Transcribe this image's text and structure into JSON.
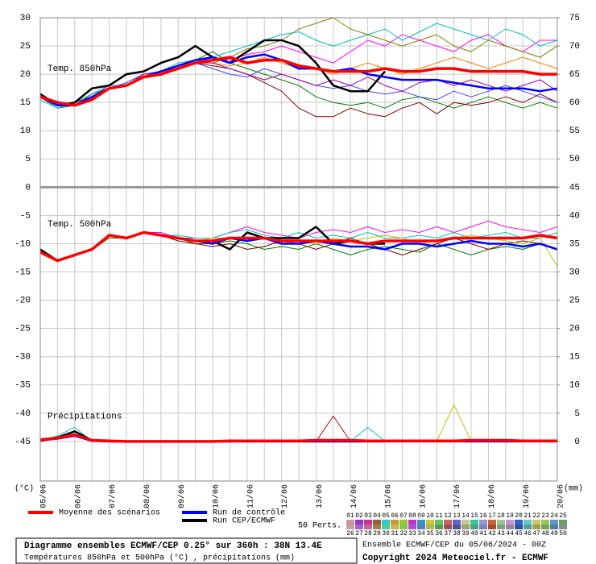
{
  "chart_data": {
    "type": "line",
    "title": "Diagramme ensembles ECMWF/CEP 0.25° sur 360h : 38N 13.4E",
    "subtitle": "Températures 850hPa et 500hPa (°C) , précipitations (mm)",
    "run_info": "Ensemble ECMWF/CEP du 05/06/2024 - 00Z",
    "copyright": "Copyright 2024 Meteociel.fr - ECMWF",
    "y_unit": "(°C)",
    "y2_unit": "(mm)",
    "panel_labels": [
      "Temp. 850hPa",
      "Temp. 500hPa",
      "Précipitations"
    ],
    "grid": true,
    "categories": [
      "05/06",
      null,
      "06/06",
      null,
      "07/06",
      null,
      "08/06",
      null,
      "09/06",
      null,
      "10/06",
      null,
      "11/06",
      null,
      "12/06",
      null,
      "13/06",
      null,
      "14/06",
      null,
      "15/06",
      null,
      "16/06",
      null,
      "17/06",
      null,
      "18/06",
      null,
      "19/06",
      null,
      "20/06"
    ],
    "ylim": [
      -52,
      30
    ],
    "yticks": [
      30,
      25,
      20,
      15,
      10,
      5,
      0,
      -5,
      -10,
      -15,
      -20,
      -25,
      -30,
      -35,
      -40,
      -45
    ],
    "y2lim": [
      -7,
      75
    ],
    "y2ticks": [
      75,
      70,
      65,
      60,
      55,
      50,
      45,
      40,
      35,
      30,
      25,
      20,
      15,
      10,
      5,
      0
    ],
    "series": [
      {
        "color": "#ff00ff",
        "values": [
          16,
          14.5,
          14.5,
          16,
          18,
          18,
          20,
          20.5,
          21.5,
          22,
          23,
          22.5,
          23.5,
          24,
          25,
          24,
          23,
          22,
          24,
          26,
          25,
          27,
          26,
          25,
          24,
          26,
          27,
          25,
          24,
          26,
          26
        ]
      },
      {
        "color": "#008000",
        "values": [
          16,
          14,
          14.5,
          16.5,
          17.5,
          18.5,
          20,
          20.5,
          21,
          22.5,
          24,
          22,
          21,
          20,
          19,
          18,
          16,
          15,
          14.5,
          15,
          14,
          15.5,
          16,
          15,
          14,
          15,
          16,
          15,
          14,
          15,
          14
        ]
      },
      {
        "color": "#800000",
        "values": [
          16,
          14.5,
          14.5,
          16,
          17.5,
          18,
          19.5,
          20,
          21,
          22,
          21.5,
          21,
          20,
          18.5,
          17,
          14,
          12.5,
          12.5,
          14,
          13,
          12.5,
          14,
          15,
          13,
          15,
          14.5,
          15,
          16,
          15,
          16.5,
          15
        ]
      },
      {
        "color": "#00c0c0",
        "values": [
          15.5,
          14,
          15,
          16.5,
          18,
          18,
          19.5,
          20.5,
          22,
          22.5,
          23,
          24,
          25,
          26,
          27,
          27.5,
          26,
          25,
          26,
          27,
          28,
          26,
          27.5,
          29,
          28,
          27,
          26,
          28,
          27,
          25,
          26
        ]
      },
      {
        "color": "#808000",
        "values": [
          16,
          14.5,
          14.5,
          16,
          17.5,
          18,
          19.5,
          20,
          21.5,
          22,
          22,
          23,
          24.5,
          25,
          26,
          28,
          29,
          30,
          28,
          27,
          26,
          25,
          26,
          27,
          25,
          24,
          26,
          25,
          24,
          23,
          25
        ]
      },
      {
        "color": "#4040ff",
        "values": [
          16,
          14.5,
          15,
          16,
          17.5,
          18.5,
          20,
          20.5,
          21,
          22,
          21,
          20,
          19.5,
          21,
          20,
          19,
          18,
          17.5,
          18,
          17,
          16.5,
          17,
          16,
          15.5,
          17,
          16,
          17,
          18,
          17,
          16,
          15
        ]
      },
      {
        "color": "#ff8000",
        "values": [
          16,
          14.5,
          14.5,
          16,
          17.5,
          18,
          20,
          20,
          21,
          22.5,
          22,
          21.5,
          22,
          23,
          22,
          21,
          21,
          20,
          21,
          22,
          21,
          20,
          21,
          22,
          23,
          22,
          21,
          22,
          23,
          22,
          21
        ]
      },
      {
        "color": "#a000a0",
        "values": [
          16,
          14.5,
          15,
          16,
          17.5,
          18,
          20,
          20.5,
          21,
          22,
          22,
          21,
          20,
          19,
          20,
          19,
          18,
          19,
          18,
          19.5,
          18,
          17,
          18.5,
          19,
          18,
          19,
          18,
          17,
          18,
          19,
          17
        ]
      },
      {
        "color": "#ff00ff",
        "values": [
          -11,
          -13,
          -12,
          -11,
          -8.5,
          -9,
          -8,
          -8,
          -9,
          -9,
          -9,
          -8,
          -7,
          -8,
          -8.5,
          -9,
          -8,
          -7.5,
          -8,
          -7,
          -8,
          -7.5,
          -8,
          -7,
          -8,
          -7,
          -6,
          -7,
          -7.5,
          -8,
          -7
        ]
      },
      {
        "color": "#008000",
        "values": [
          -11.5,
          -13,
          -12,
          -11,
          -9,
          -9,
          -8,
          -8.5,
          -9,
          -10,
          -10,
          -9.5,
          -10,
          -11,
          -10.5,
          -11,
          -10,
          -11,
          -12,
          -11,
          -10.5,
          -11,
          -11.5,
          -10,
          -11,
          -12,
          -11,
          -10.5,
          -11,
          -10,
          -11
        ]
      },
      {
        "color": "#00c0c0",
        "values": [
          -11,
          -13,
          -12,
          -11,
          -8.5,
          -9,
          -8,
          -8.5,
          -8.5,
          -9,
          -9,
          -8,
          -7.5,
          -8.5,
          -9,
          -8,
          -9,
          -8.5,
          -9,
          -8,
          -9,
          -9,
          -8.5,
          -9,
          -8,
          -9,
          -8.5,
          -8,
          -9,
          -9,
          -8
        ]
      },
      {
        "color": "#800000",
        "values": [
          -11.5,
          -13,
          -12,
          -11,
          -8.5,
          -9,
          -8,
          -8.5,
          -9.5,
          -10,
          -10.5,
          -10,
          -11,
          -10.5,
          -9.5,
          -10,
          -11,
          -10,
          -9,
          -10,
          -11,
          -12,
          -11,
          -10,
          -9,
          -10,
          -11,
          -10,
          -9.5,
          -10,
          -11
        ]
      },
      {
        "color": "#c0c000",
        "values": [
          -11,
          -13,
          -12,
          -11,
          -8.5,
          -9,
          -8,
          -8.5,
          -9,
          -9.5,
          -9,
          -9,
          -9.5,
          -9,
          -10,
          -9.5,
          -10,
          -9,
          -9.5,
          -9,
          -8.5,
          -9,
          -10,
          -9.5,
          -9,
          -8.5,
          -9,
          -9.5,
          -10,
          -9,
          -14
        ]
      },
      {
        "color": "#00c0c0",
        "axis": "y2",
        "values": [
          0,
          1,
          2.5,
          0,
          0,
          0,
          0,
          0,
          0,
          0,
          0,
          0,
          0,
          0,
          0,
          0,
          0,
          0,
          0,
          2.5,
          0,
          0,
          0,
          0,
          0,
          0,
          0,
          0,
          0,
          0,
          0
        ]
      },
      {
        "color": "#c0c000",
        "axis": "y2",
        "values": [
          0,
          0.5,
          1,
          0,
          0,
          0,
          0,
          0,
          0,
          0,
          0,
          0,
          0,
          0,
          0,
          0,
          0,
          0,
          0,
          0,
          0,
          0,
          0,
          0,
          6.5,
          0,
          0,
          0,
          0,
          0,
          0
        ]
      },
      {
        "color": "#c00000",
        "axis": "y2",
        "values": [
          0,
          0.5,
          1,
          0,
          0,
          0,
          0,
          0,
          0,
          0,
          0,
          0,
          0,
          0,
          0,
          0,
          0,
          4.5,
          0,
          0,
          0,
          0,
          0,
          0,
          0,
          0,
          0,
          0,
          0,
          0,
          0
        ]
      },
      {
        "name": "Moyenne des scénarios",
        "color": "#ff0000",
        "values": [
          16,
          15,
          14.5,
          15.5,
          17.5,
          18,
          19.5,
          20,
          21,
          22,
          22.5,
          23,
          22,
          22.5,
          22.5,
          21.5,
          21,
          20.5,
          20.5,
          20.5,
          21,
          20.5,
          20.5,
          21,
          21,
          20.5,
          20.5,
          20.5,
          20.5,
          20,
          20
        ]
      },
      {
        "name": "Run de contrôle",
        "color": "#0000ff",
        "values": [
          16,
          14.5,
          14.5,
          16,
          17.5,
          18,
          19.5,
          20.5,
          21.5,
          22.5,
          23,
          22,
          23,
          23.5,
          22.5,
          21,
          21,
          20.5,
          21,
          20,
          19.5,
          19,
          19,
          19,
          18.5,
          18,
          17.5,
          17.5,
          17.5,
          17,
          17.5
        ]
      },
      {
        "name": "Run CEP/ECMWF",
        "color": "#000000",
        "values": [
          16.5,
          14.5,
          15,
          17.5,
          18,
          20,
          20.5,
          22,
          23,
          25,
          23,
          22,
          24,
          26,
          26,
          25,
          22,
          18,
          17,
          17,
          20.5,
          null,
          null,
          null,
          null,
          null,
          null,
          null,
          null,
          null,
          null
        ]
      },
      {
        "name": "Moyenne des scénarios",
        "color": "#ff0000",
        "values": [
          -11.5,
          -13,
          -12,
          -11,
          -8.5,
          -9,
          -8,
          -8.5,
          -9,
          -9.5,
          -9.5,
          -9,
          -9,
          -9,
          -9.5,
          -9.5,
          -9.5,
          -9.5,
          -9.5,
          -10,
          -9.5,
          -9.5,
          -9.5,
          -9.5,
          -9,
          -9,
          -9,
          -9,
          -9,
          -8.5,
          -9
        ]
      },
      {
        "name": "Run de contrôle",
        "color": "#0000ff",
        "values": [
          -11.5,
          -13,
          -12,
          -11,
          -8.5,
          -9,
          -8,
          -8.5,
          -9,
          -9.5,
          -10,
          -9,
          -9.5,
          -9,
          -10,
          -10,
          -9.5,
          -10,
          -10.5,
          -10.5,
          -11,
          -10,
          -10,
          -10.5,
          -10,
          -9.5,
          -10,
          -10,
          -10.5,
          -10,
          -11
        ]
      },
      {
        "name": "Run CEP/ECMWF",
        "color": "#000000",
        "values": [
          -11,
          -13,
          -12,
          -11,
          -8.5,
          -9,
          -8,
          -8.5,
          -9,
          -9.5,
          -9.5,
          -11,
          -8,
          -9,
          -9,
          -9,
          -7,
          -10,
          -9.5,
          -10,
          -10,
          null,
          null,
          null,
          null,
          null,
          null,
          null,
          null,
          null,
          null
        ]
      },
      {
        "name": "Moyenne des scénarios",
        "color": "#ff0000",
        "axis": "y2",
        "values": [
          0.3,
          0.6,
          1.2,
          0.2,
          0.1,
          0,
          0,
          0,
          0,
          0,
          0,
          0.1,
          0.1,
          0.1,
          0.1,
          0.1,
          0.2,
          0.2,
          0.2,
          0.1,
          0.1,
          0.1,
          0.1,
          0.1,
          0.1,
          0.2,
          0.2,
          0.2,
          0.1,
          0.1,
          0.1
        ]
      },
      {
        "name": "Run de contrôle",
        "color": "#0000ff",
        "axis": "y2",
        "values": [
          0.2,
          0.5,
          1,
          0.1,
          0,
          0,
          0,
          0,
          0,
          0,
          0,
          0,
          0,
          0,
          0,
          0,
          0,
          0,
          0,
          0,
          0,
          0,
          0,
          0,
          0,
          0,
          0,
          0,
          0,
          0,
          0
        ]
      },
      {
        "name": "Run CEP/ECMWF",
        "color": "#000000",
        "axis": "y2",
        "values": [
          0.3,
          0.7,
          1.8,
          0.2,
          0,
          0,
          0,
          0,
          0,
          0,
          0,
          0,
          0,
          0,
          0,
          0,
          0,
          0,
          0,
          0,
          0,
          null,
          null,
          null,
          null,
          null,
          null,
          null,
          null,
          null,
          null
        ]
      }
    ],
    "members": {
      "count_label": "50 Perts.",
      "labels": [
        "01",
        "02",
        "03",
        "04",
        "05",
        "06",
        "07",
        "08",
        "09",
        "10",
        "11",
        "12",
        "13",
        "14",
        "15",
        "16",
        "17",
        "18",
        "19",
        "20",
        "21",
        "22",
        "23",
        "24",
        "25",
        "26",
        "27",
        "28",
        "29",
        "30",
        "31",
        "32",
        "33",
        "34",
        "35",
        "36",
        "37",
        "38",
        "39",
        "40",
        "41",
        "42",
        "43",
        "44",
        "45",
        "46",
        "47",
        "48",
        "49",
        "50"
      ],
      "colors": [
        "#c89696",
        "#9632c8",
        "#c83296",
        "#966432",
        "#32c8c8",
        "#c89632",
        "#96c832",
        "#c832c8",
        "#3296c8",
        "#c8c832",
        "#64c864",
        "#c86464",
        "#6464c8",
        "#c8c896",
        "#32c896",
        "#9696c8",
        "#c86432",
        "#96c896",
        "#c896c8",
        "#3264c8",
        "#64c8c8",
        "#c8c864",
        "#96c864",
        "#6496c8",
        "#64a064",
        "#c8a0a0",
        "#a064c8",
        "#c86496",
        "#a08050",
        "#50c8a0",
        "#c8b450",
        "#80c850",
        "#b450c8",
        "#5080c8",
        "#b4b450",
        "#50a050",
        "#a05050",
        "#5050a0",
        "#a0a064",
        "#50a080",
        "#8080c8",
        "#a05030",
        "#80a080",
        "#a080a0",
        "#3050a0",
        "#50a0a0",
        "#a0a050",
        "#80a050",
        "#5080a0",
        "#8c8c8c"
      ]
    }
  }
}
